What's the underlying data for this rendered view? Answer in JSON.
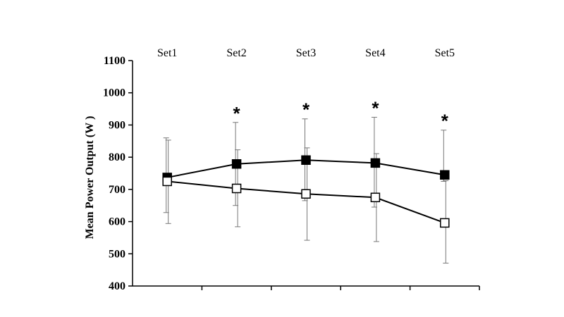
{
  "chart_data": {
    "type": "line",
    "categories": [
      "Set1",
      "Set2",
      "Set3",
      "Set4",
      "Set5"
    ],
    "ylabel": "Mean Power Output (W )",
    "xlabel": "",
    "ylim": [
      400,
      1100
    ],
    "yticks": [
      400,
      500,
      600,
      700,
      800,
      900,
      1000,
      1100
    ],
    "grid": false,
    "legend": "none",
    "series": [
      {
        "marker": "filled-square",
        "color": "#000000",
        "values": [
          737,
          779,
          791,
          782,
          745
        ],
        "error_upper": [
          860,
          908,
          919,
          924,
          884
        ],
        "error_lower": [
          628,
          650,
          665,
          645,
          725
        ]
      },
      {
        "marker": "open-square",
        "color": "#000000",
        "values": [
          725,
          703,
          686,
          675,
          596
        ],
        "error_upper": [
          853,
          823,
          829,
          811,
          727
        ],
        "error_lower": [
          594,
          584,
          542,
          538,
          471
        ]
      }
    ],
    "significance": [
      {
        "category": "Set2",
        "mark": "*"
      },
      {
        "category": "Set3",
        "mark": "*"
      },
      {
        "category": "Set4",
        "mark": "*"
      },
      {
        "category": "Set5",
        "mark": "*"
      }
    ]
  }
}
